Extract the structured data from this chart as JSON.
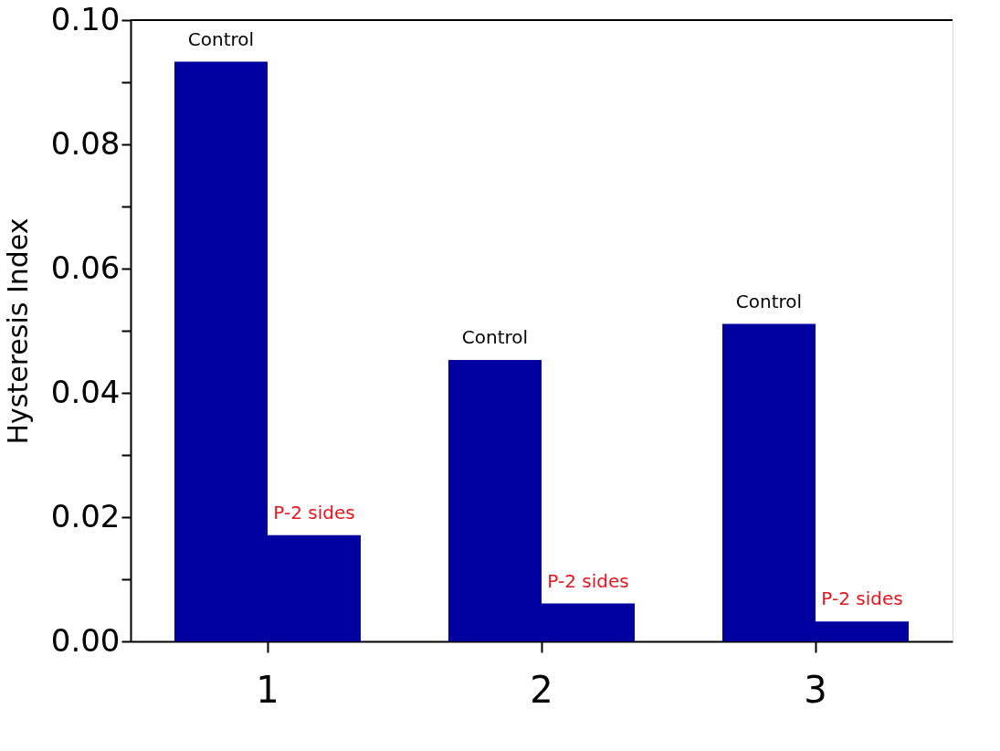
{
  "chart_data": {
    "type": "bar",
    "ylabel": "Hysteresis Index",
    "categories": [
      "1",
      "2",
      "3"
    ],
    "series": [
      {
        "name": "Control",
        "color": "#0000a0",
        "values": [
          0.0933,
          0.0453,
          0.0511
        ]
      },
      {
        "name": "P-2 sides",
        "color": "#0000a0",
        "values": [
          0.0171,
          0.0061,
          0.0032
        ]
      }
    ],
    "ylim": [
      0,
      0.1
    ],
    "yticks": [
      {
        "value": 0,
        "label": "0.00"
      },
      {
        "value": 0.01,
        "label": null
      },
      {
        "value": 0.02,
        "label": "0.02"
      },
      {
        "value": 0.03,
        "label": null
      },
      {
        "value": 0.04,
        "label": "0.04"
      },
      {
        "value": 0.05,
        "label": null
      },
      {
        "value": 0.06,
        "label": "0.06"
      },
      {
        "value": 0.07,
        "label": null
      },
      {
        "value": 0.08,
        "label": "0.08"
      },
      {
        "value": 0.09,
        "label": null
      },
      {
        "value": 0.1,
        "label": "0.10"
      }
    ],
    "legend": false,
    "grid": false
  }
}
